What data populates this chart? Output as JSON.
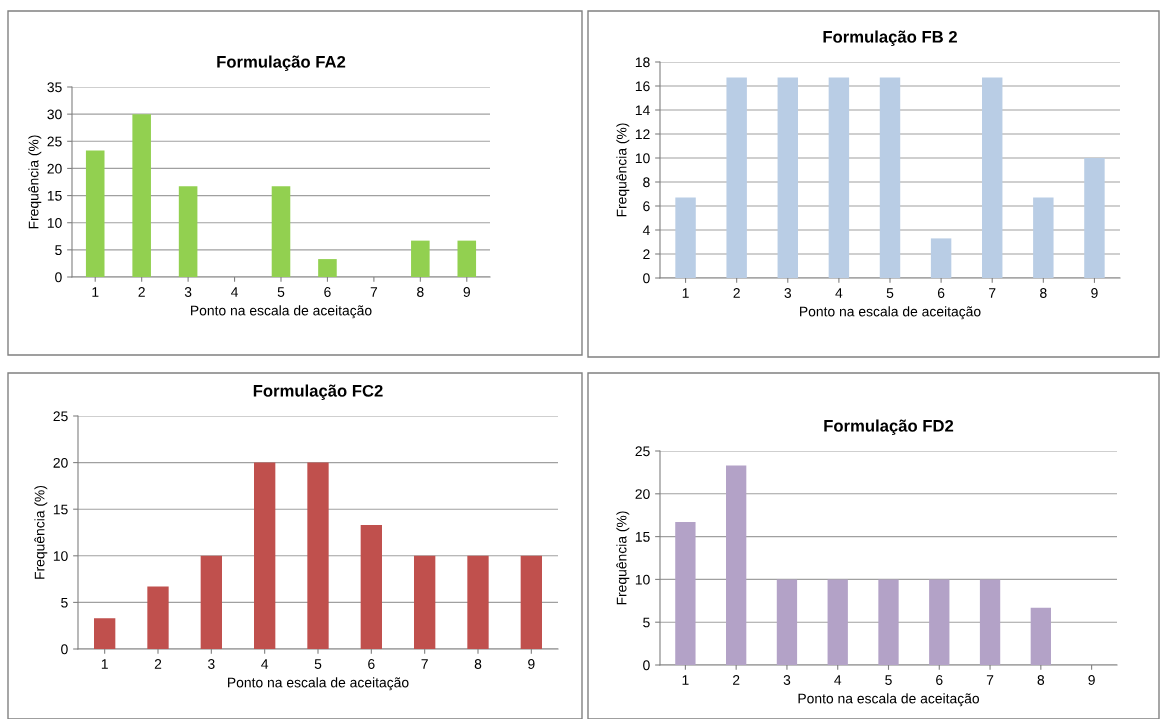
{
  "chart_data": [
    {
      "type": "bar",
      "title": "Formulação FA2",
      "xlabel": "Ponto na escala de aceitação",
      "ylabel": "Frequência (%)",
      "categories": [
        "1",
        "2",
        "3",
        "4",
        "5",
        "6",
        "7",
        "8",
        "9"
      ],
      "values": [
        23.3,
        30,
        16.7,
        0,
        16.7,
        3.3,
        0,
        6.7,
        6.7
      ],
      "color": "#92d050",
      "ylim": [
        0,
        35
      ],
      "yticks": [
        0,
        5,
        10,
        15,
        20,
        25,
        30,
        35
      ],
      "grid": "y",
      "legend": false
    },
    {
      "type": "bar",
      "title": "Formulação FB 2",
      "xlabel": "Ponto na escala de aceitação",
      "ylabel": "Frequência (%)",
      "categories": [
        "1",
        "2",
        "3",
        "4",
        "5",
        "6",
        "7",
        "8",
        "9"
      ],
      "values": [
        6.7,
        16.7,
        16.7,
        16.7,
        16.7,
        3.3,
        16.7,
        6.7,
        10
      ],
      "color": "#b9cde5",
      "ylim": [
        0,
        18
      ],
      "yticks": [
        0,
        2,
        4,
        6,
        8,
        10,
        12,
        14,
        16,
        18
      ],
      "grid": "y",
      "legend": false
    },
    {
      "type": "bar",
      "title": "Formulação FC2",
      "xlabel": "Ponto na escala de aceitação",
      "ylabel": "Frequência (%)",
      "categories": [
        "1",
        "2",
        "3",
        "4",
        "5",
        "6",
        "7",
        "8",
        "9"
      ],
      "values": [
        3.3,
        6.7,
        10,
        20,
        20,
        13.3,
        10,
        10,
        10
      ],
      "color": "#c0504d",
      "ylim": [
        0,
        25
      ],
      "yticks": [
        0,
        5,
        10,
        15,
        20,
        25
      ],
      "grid": "y",
      "legend": false
    },
    {
      "type": "bar",
      "title": "Formulação FD2",
      "xlabel": "Ponto na escala de aceitação",
      "ylabel": "Frequência (%)",
      "categories": [
        "1",
        "2",
        "3",
        "4",
        "5",
        "6",
        "7",
        "8",
        "9"
      ],
      "values": [
        16.7,
        23.3,
        10,
        10,
        10,
        10,
        10,
        6.7,
        0
      ],
      "color": "#b3a2c7",
      "ylim": [
        0,
        25
      ],
      "yticks": [
        0,
        5,
        10,
        15,
        20,
        25
      ],
      "grid": "y",
      "legend": false
    }
  ]
}
